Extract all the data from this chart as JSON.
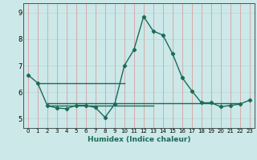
{
  "title": "",
  "xlabel": "Humidex (Indice chaleur)",
  "ylabel": "",
  "bg_color": "#cce8e8",
  "plot_bg_color": "#cce8e8",
  "line_color": "#1a6b5a",
  "grid_color_v": "#d9a0a0",
  "grid_color_h": "#b8d8d8",
  "x_ticks": [
    0,
    1,
    2,
    3,
    4,
    5,
    6,
    7,
    8,
    9,
    10,
    11,
    12,
    13,
    14,
    15,
    16,
    17,
    18,
    19,
    20,
    21,
    22,
    23
  ],
  "y_ticks": [
    5,
    6,
    7,
    8,
    9
  ],
  "ylim": [
    4.65,
    9.35
  ],
  "xlim": [
    -0.5,
    23.5
  ],
  "main_series": {
    "x": [
      0,
      1,
      2,
      3,
      4,
      5,
      6,
      7,
      8,
      9,
      10,
      11,
      12,
      13,
      14,
      15,
      16,
      17,
      18,
      19,
      20,
      21,
      22,
      23
    ],
    "y": [
      6.65,
      6.35,
      5.5,
      5.4,
      5.38,
      5.5,
      5.5,
      5.42,
      5.05,
      5.55,
      7.0,
      7.6,
      8.85,
      8.3,
      8.15,
      7.45,
      6.55,
      6.05,
      5.6,
      5.6,
      5.45,
      5.5,
      5.55,
      5.7
    ],
    "marker": "D",
    "marker_size": 2.2,
    "linewidth": 1.0
  },
  "ref_lines": [
    {
      "x": [
        1,
        10
      ],
      "y": [
        6.35,
        6.35
      ]
    },
    {
      "x": [
        2,
        13
      ],
      "y": [
        5.48,
        5.48
      ]
    },
    {
      "x": [
        2,
        22
      ],
      "y": [
        5.58,
        5.58
      ]
    }
  ],
  "xlabel_fontsize": 6.5,
  "tick_fontsize_x": 5.0,
  "tick_fontsize_y": 6.0
}
